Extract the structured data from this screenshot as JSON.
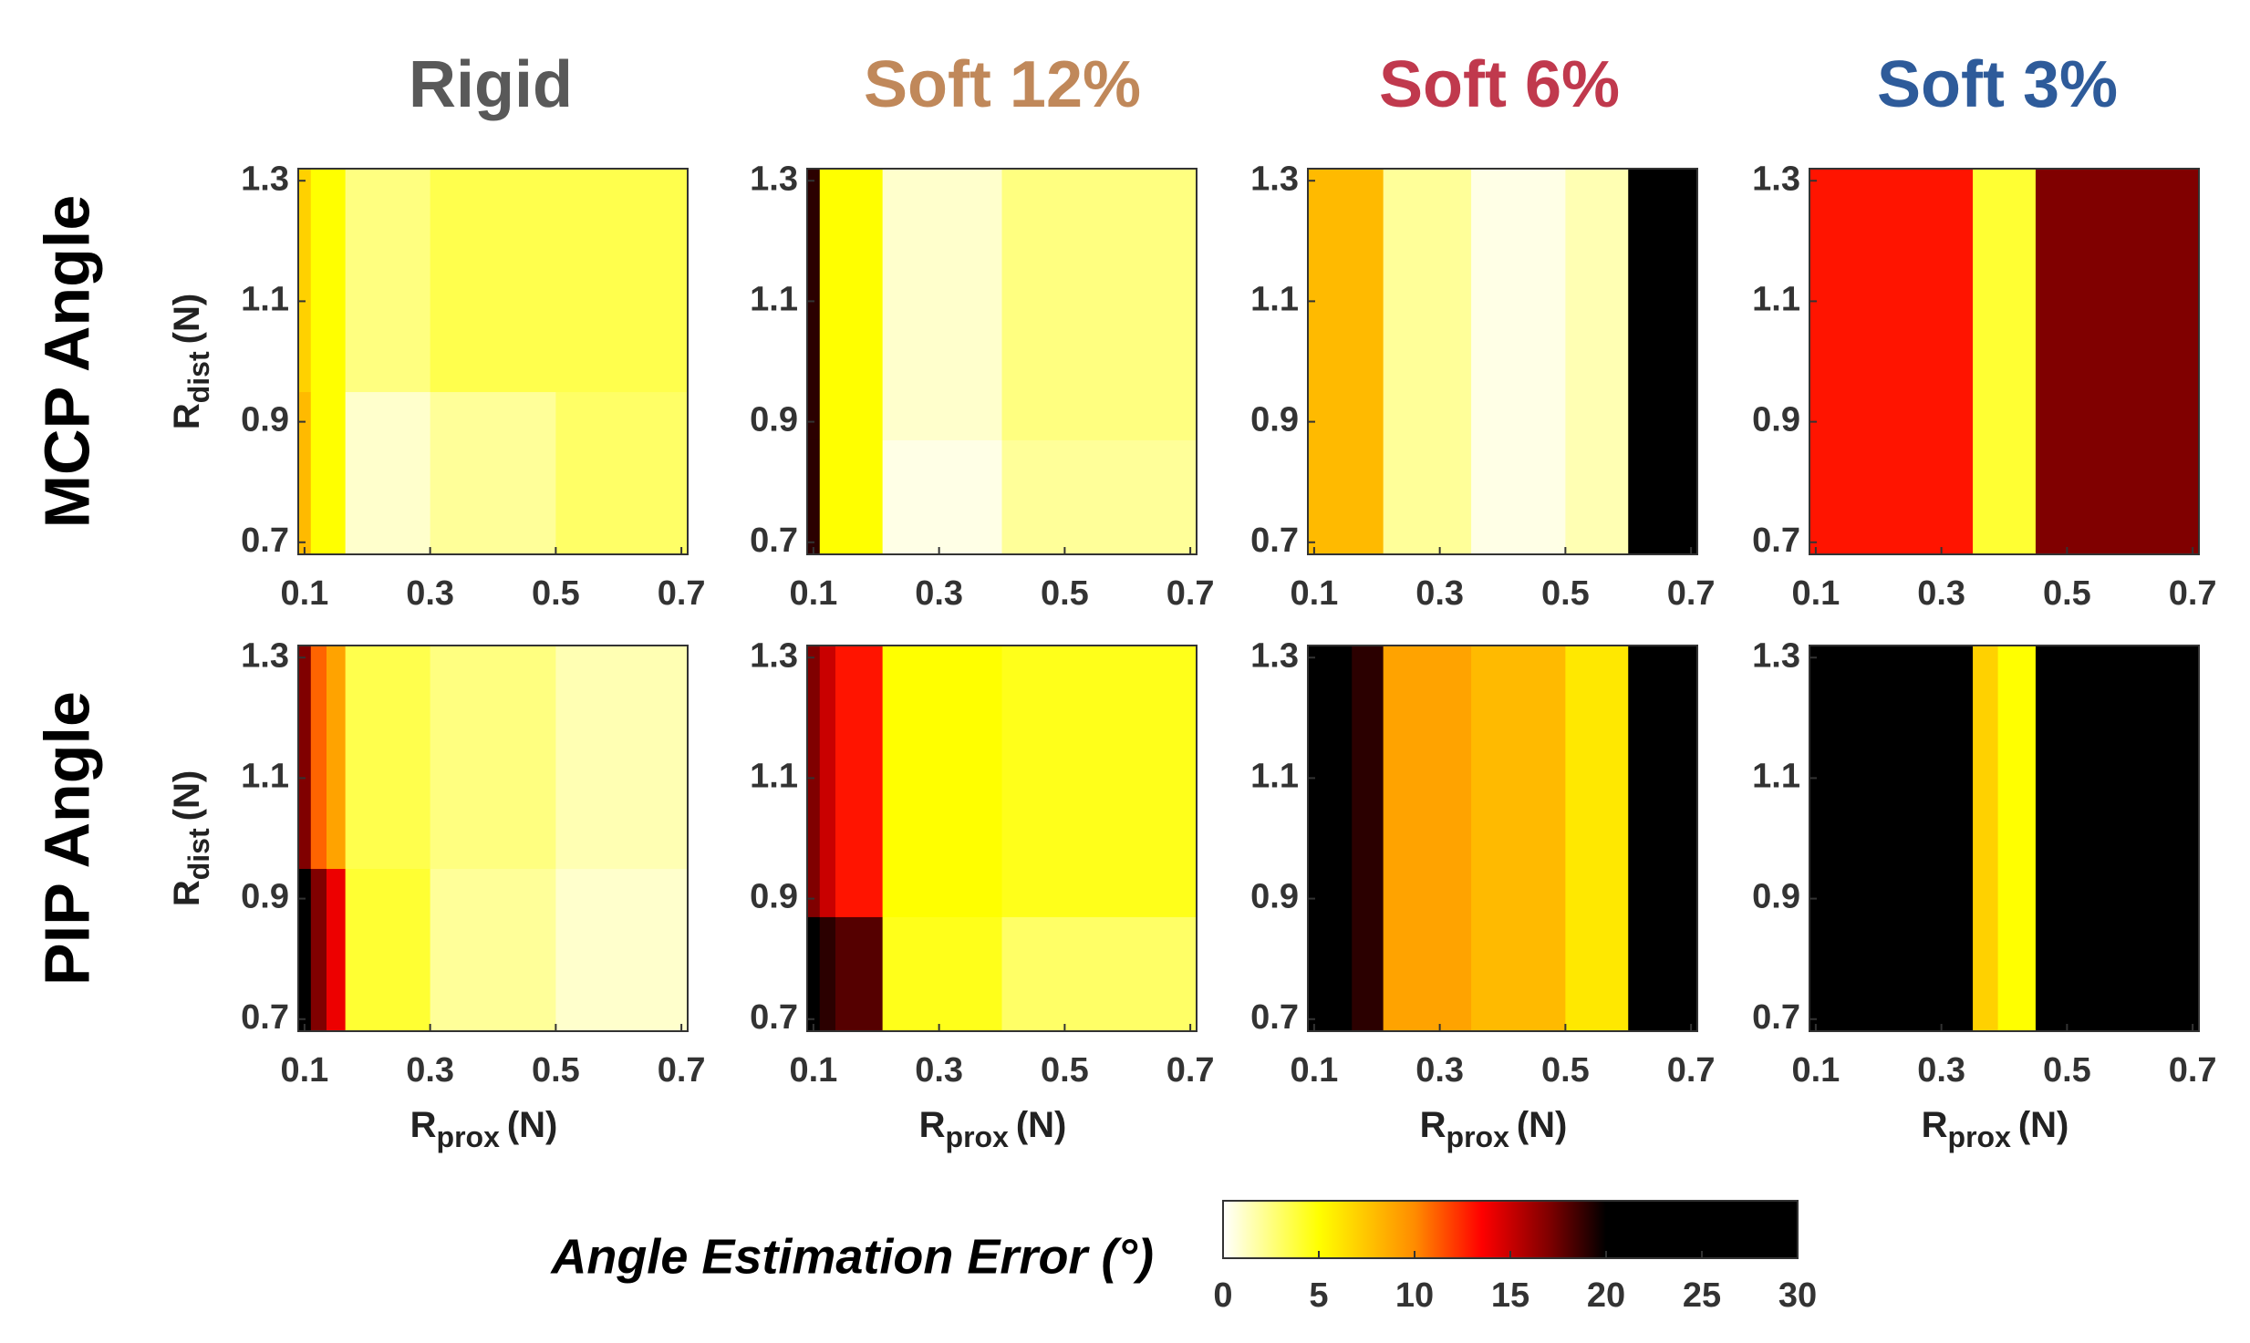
{
  "column_titles": [
    {
      "text": "Rigid",
      "color": "#595959"
    },
    {
      "text": "Soft 12%",
      "color": "#c0885a"
    },
    {
      "text": "Soft 6%",
      "color": "#c0394d"
    },
    {
      "text": "Soft 3%",
      "color": "#2e5b9a"
    }
  ],
  "row_labels": [
    "MCP Angle",
    "PIP Angle"
  ],
  "colorbar": {
    "label": "Angle Estimation Error (°)",
    "lim": [
      0,
      30
    ],
    "ticks": [
      0,
      5,
      10,
      15,
      20,
      25,
      30
    ],
    "colorscale": [
      [
        0,
        "#ffffff"
      ],
      [
        5,
        "#ffff00"
      ],
      [
        10,
        "#ff8c00"
      ],
      [
        13.5,
        "#ff0000"
      ],
      [
        17,
        "#800000"
      ],
      [
        20,
        "#000000"
      ],
      [
        30,
        "#000000"
      ]
    ]
  },
  "chart_data": [
    {
      "type": "heatmap",
      "ylabel": {
        "main": "R",
        "sub": "dist",
        "unit": "(N)"
      },
      "x_edges": [
        0.09,
        0.11,
        0.165,
        0.3,
        0.5,
        0.71
      ],
      "y_edges": [
        0.68,
        0.95,
        1.32
      ],
      "values": [
        [
          8,
          5,
          1,
          2,
          3
        ],
        [
          7,
          5,
          2.5,
          3.5,
          3.5
        ]
      ],
      "xlim": [
        0.09,
        0.71
      ],
      "ylim": [
        0.68,
        1.32
      ],
      "xticks": [
        0.1,
        0.3,
        0.5,
        0.7
      ],
      "yticks": [
        0.7,
        0.9,
        1.1,
        1.3
      ]
    },
    {
      "type": "heatmap",
      "x_edges": [
        0.09,
        0.11,
        0.21,
        0.4,
        0.71
      ],
      "y_edges": [
        0.68,
        0.87,
        1.32
      ],
      "values": [
        [
          19,
          5,
          0.5,
          2
        ],
        [
          19,
          5,
          1,
          2.5
        ]
      ],
      "xlim": [
        0.09,
        0.71
      ],
      "ylim": [
        0.68,
        1.32
      ],
      "xticks": [
        0.1,
        0.3,
        0.5,
        0.7
      ],
      "yticks": [
        0.7,
        0.9,
        1.1,
        1.3
      ]
    },
    {
      "type": "heatmap",
      "x_edges": [
        0.09,
        0.21,
        0.35,
        0.5,
        0.6,
        0.71
      ],
      "y_edges": [
        0.68,
        1.32
      ],
      "values": [
        [
          8,
          2,
          0.5,
          1.5,
          22
        ]
      ],
      "xlim": [
        0.09,
        0.71
      ],
      "ylim": [
        0.68,
        1.32
      ],
      "xticks": [
        0.1,
        0.3,
        0.5,
        0.7
      ],
      "yticks": [
        0.7,
        0.9,
        1.1,
        1.3
      ]
    },
    {
      "type": "heatmap",
      "x_edges": [
        0.09,
        0.35,
        0.45,
        0.71
      ],
      "y_edges": [
        0.68,
        1.32
      ],
      "values": [
        [
          13,
          4,
          17
        ]
      ],
      "xlim": [
        0.09,
        0.71
      ],
      "ylim": [
        0.68,
        1.32
      ],
      "xticks": [
        0.1,
        0.3,
        0.5,
        0.7
      ],
      "yticks": [
        0.7,
        0.9,
        1.1,
        1.3
      ]
    },
    {
      "type": "heatmap",
      "ylabel": {
        "main": "R",
        "sub": "dist",
        "unit": "(N)"
      },
      "xlabel": {
        "main": "R",
        "sub": "prox",
        "unit": "(N)"
      },
      "x_edges": [
        0.09,
        0.11,
        0.135,
        0.165,
        0.3,
        0.5,
        0.71
      ],
      "y_edges": [
        0.68,
        0.95,
        1.32
      ],
      "values": [
        [
          22,
          17,
          14,
          4,
          2,
          1
        ],
        [
          17,
          11,
          9,
          3.5,
          2.5,
          1.5
        ]
      ],
      "xlim": [
        0.09,
        0.71
      ],
      "ylim": [
        0.68,
        1.32
      ],
      "xticks": [
        0.1,
        0.3,
        0.5,
        0.7
      ],
      "yticks": [
        0.7,
        0.9,
        1.1,
        1.3
      ]
    },
    {
      "type": "heatmap",
      "xlabel": {
        "main": "R",
        "sub": "prox",
        "unit": "(N)"
      },
      "x_edges": [
        0.09,
        0.11,
        0.135,
        0.21,
        0.4,
        0.71
      ],
      "y_edges": [
        0.68,
        0.87,
        1.32
      ],
      "values": [
        [
          22,
          19,
          18,
          4.5,
          3
        ],
        [
          17,
          15,
          13,
          5,
          4.5
        ]
      ],
      "xlim": [
        0.09,
        0.71
      ],
      "ylim": [
        0.68,
        1.32
      ],
      "xticks": [
        0.1,
        0.3,
        0.5,
        0.7
      ],
      "yticks": [
        0.7,
        0.9,
        1.1,
        1.3
      ]
    },
    {
      "type": "heatmap",
      "xlabel": {
        "main": "R",
        "sub": "prox",
        "unit": "(N)"
      },
      "x_edges": [
        0.09,
        0.16,
        0.21,
        0.35,
        0.5,
        0.6,
        0.71
      ],
      "y_edges": [
        0.68,
        1.32
      ],
      "values": [
        [
          21,
          19,
          9,
          8,
          6,
          22
        ]
      ],
      "xlim": [
        0.09,
        0.71
      ],
      "ylim": [
        0.68,
        1.32
      ],
      "xticks": [
        0.1,
        0.3,
        0.5,
        0.7
      ],
      "yticks": [
        0.7,
        0.9,
        1.1,
        1.3
      ]
    },
    {
      "type": "heatmap",
      "xlabel": {
        "main": "R",
        "sub": "prox",
        "unit": "(N)"
      },
      "x_edges": [
        0.09,
        0.35,
        0.39,
        0.45,
        0.71
      ],
      "y_edges": [
        0.68,
        1.32
      ],
      "values": [
        [
          22,
          7,
          5,
          22
        ]
      ],
      "xlim": [
        0.09,
        0.71
      ],
      "ylim": [
        0.68,
        1.32
      ],
      "xticks": [
        0.1,
        0.3,
        0.5,
        0.7
      ],
      "yticks": [
        0.7,
        0.9,
        1.1,
        1.3
      ]
    }
  ]
}
